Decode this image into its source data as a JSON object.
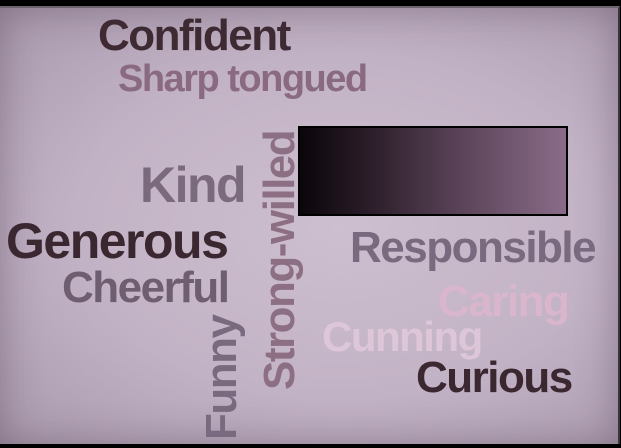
{
  "word_cloud": {
    "words": [
      {
        "key": "confident",
        "text": "Confident",
        "color": "#3e2a33"
      },
      {
        "key": "sharp_tongued",
        "text": "Sharp tongued",
        "color": "#8a6a80"
      },
      {
        "key": "kind",
        "text": "Kind",
        "color": "#7b6a7e"
      },
      {
        "key": "generous",
        "text": "Generous",
        "color": "#3b2730"
      },
      {
        "key": "cheerful",
        "text": "Cheerful",
        "color": "#6f5e70"
      },
      {
        "key": "strong_willed",
        "text": "Strong-willed",
        "color": "#8c6f82",
        "orientation": "vertical"
      },
      {
        "key": "funny",
        "text": "Funny",
        "color": "#7a6a80",
        "orientation": "vertical"
      },
      {
        "key": "responsible",
        "text": "Responsible",
        "color": "#7a6a80"
      },
      {
        "key": "caring",
        "text": "Caring",
        "color": "#d9b6cb"
      },
      {
        "key": "cunning",
        "text": "Cunning",
        "color": "#ddc6d8"
      },
      {
        "key": "curious",
        "text": "Curious",
        "color": "#3b2730"
      }
    ]
  },
  "colors": {
    "panel_background": "#c2b2c5",
    "frame": "#000000",
    "redaction_box": "#2a1c28"
  }
}
